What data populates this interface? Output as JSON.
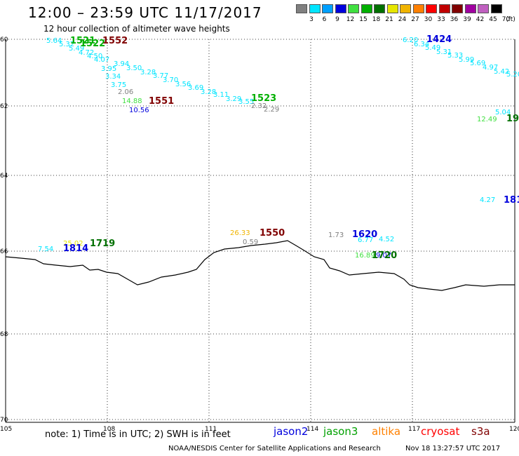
{
  "header": {
    "title": "12:00 – 23:59 UTC 11/17/2017",
    "subtitle": "12 hour collection of altimeter wave heights"
  },
  "color_scale": {
    "unit_label": "(ft)",
    "steps": [
      {
        "label": "3",
        "color": "#808080"
      },
      {
        "label": "6",
        "color": "#00e5ff"
      },
      {
        "label": "9",
        "color": "#00a0ff"
      },
      {
        "label": "12",
        "color": "#0000dd"
      },
      {
        "label": "15",
        "color": "#40e040"
      },
      {
        "label": "18",
        "color": "#00b000"
      },
      {
        "label": "21",
        "color": "#007000"
      },
      {
        "label": "24",
        "color": "#e6e600"
      },
      {
        "label": "27",
        "color": "#f0b400"
      },
      {
        "label": "30",
        "color": "#ff8000"
      },
      {
        "label": "33",
        "color": "#ff0000"
      },
      {
        "label": "36",
        "color": "#c00000"
      },
      {
        "label": "39",
        "color": "#800000"
      },
      {
        "label": "42",
        "color": "#a000a0"
      },
      {
        "label": "45",
        "color": "#c060c0"
      },
      {
        "label": "70",
        "color": "#000000"
      }
    ]
  },
  "axes": {
    "lon_ticks": [
      "105",
      "108",
      "111",
      "114",
      "117",
      "120"
    ],
    "lat_ticks": [
      "60",
      "62",
      "64",
      "66",
      "68",
      "70"
    ]
  },
  "time_labels": [
    {
      "text": "1521",
      "color": "#00b000"
    },
    {
      "text": "1522",
      "color": "#00b000"
    },
    {
      "text": "1552",
      "color": "#800000"
    },
    {
      "text": "1551",
      "color": "#800000"
    },
    {
      "text": "1523",
      "color": "#00b000"
    },
    {
      "text": "1424",
      "color": "#0000dd"
    },
    {
      "text": "19",
      "color": "#007000"
    },
    {
      "text": "181",
      "color": "#0000dd"
    },
    {
      "text": "1814",
      "color": "#0000dd"
    },
    {
      "text": "1719",
      "color": "#007000"
    },
    {
      "text": "1550",
      "color": "#800000"
    },
    {
      "text": "1620",
      "color": "#0000dd"
    },
    {
      "text": "1720",
      "color": "#007000"
    }
  ],
  "wave_labels": [
    {
      "text": "5.64",
      "color": "#00e5ff"
    },
    {
      "text": "5.32",
      "color": "#00e5ff"
    },
    {
      "text": "5.49",
      "color": "#00e5ff"
    },
    {
      "text": "4.72",
      "color": "#00e5ff"
    },
    {
      "text": "4.50",
      "color": "#00e5ff"
    },
    {
      "text": "4.07",
      "color": "#00e5ff"
    },
    {
      "text": "3.95",
      "color": "#00e5ff"
    },
    {
      "text": "3.94",
      "color": "#00e5ff"
    },
    {
      "text": "3.50",
      "color": "#00e5ff"
    },
    {
      "text": "3.34",
      "color": "#00e5ff"
    },
    {
      "text": "3.28",
      "color": "#00e5ff"
    },
    {
      "text": "3.77",
      "color": "#00e5ff"
    },
    {
      "text": "3.75",
      "color": "#00e5ff"
    },
    {
      "text": "3.70",
      "color": "#00e5ff"
    },
    {
      "text": "3.56",
      "color": "#00e5ff"
    },
    {
      "text": "3.69",
      "color": "#00e5ff"
    },
    {
      "text": "3.28",
      "color": "#00e5ff"
    },
    {
      "text": "3.11",
      "color": "#00e5ff"
    },
    {
      "text": "3.29",
      "color": "#00e5ff"
    },
    {
      "text": "3.55",
      "color": "#00e5ff"
    },
    {
      "text": "2.06",
      "color": "#808080"
    },
    {
      "text": "2.32",
      "color": "#808080"
    },
    {
      "text": "2.29",
      "color": "#808080"
    },
    {
      "text": "14.88",
      "color": "#40e040"
    },
    {
      "text": "10.56",
      "color": "#0000dd"
    },
    {
      "text": "6.20",
      "color": "#00e5ff"
    },
    {
      "text": "6.34",
      "color": "#00e5ff"
    },
    {
      "text": "5.49",
      "color": "#00e5ff"
    },
    {
      "text": "5.31",
      "color": "#00e5ff"
    },
    {
      "text": "5.33",
      "color": "#00e5ff"
    },
    {
      "text": "5.99",
      "color": "#00e5ff"
    },
    {
      "text": "5.69",
      "color": "#00e5ff"
    },
    {
      "text": "4.97",
      "color": "#00e5ff"
    },
    {
      "text": "5.42",
      "color": "#00e5ff"
    },
    {
      "text": "5.20",
      "color": "#00e5ff"
    },
    {
      "text": "5.04",
      "color": "#00e5ff"
    },
    {
      "text": "12.49",
      "color": "#40e040"
    },
    {
      "text": "4.27",
      "color": "#00e5ff"
    },
    {
      "text": "7.54",
      "color": "#00e5ff"
    },
    {
      "text": "25.02",
      "color": "#e6e600"
    },
    {
      "text": "26.33",
      "color": "#f0b400"
    },
    {
      "text": "0.59",
      "color": "#808080"
    },
    {
      "text": "1.73",
      "color": "#808080"
    },
    {
      "text": "6.77",
      "color": "#00e5ff"
    },
    {
      "text": "4.52",
      "color": "#00e5ff"
    },
    {
      "text": "16.89",
      "color": "#40e040"
    },
    {
      "text": "9.07",
      "color": "#0000dd"
    }
  ],
  "footer": {
    "note": "note: 1) Time is in UTC; 2) SWH is in feet",
    "legend": [
      {
        "text": "jason2",
        "color": "#0000dd"
      },
      {
        "text": "jason3",
        "color": "#00a000"
      },
      {
        "text": "altika",
        "color": "#ff8000"
      },
      {
        "text": "cryosat",
        "color": "#ff0000"
      },
      {
        "text": "s3a",
        "color": "#800000"
      }
    ],
    "credit": "NOAA/NESDIS Center for Satellite Applications and Research",
    "timestamp": "Nov 18 13:27:57 UTC 2017"
  }
}
